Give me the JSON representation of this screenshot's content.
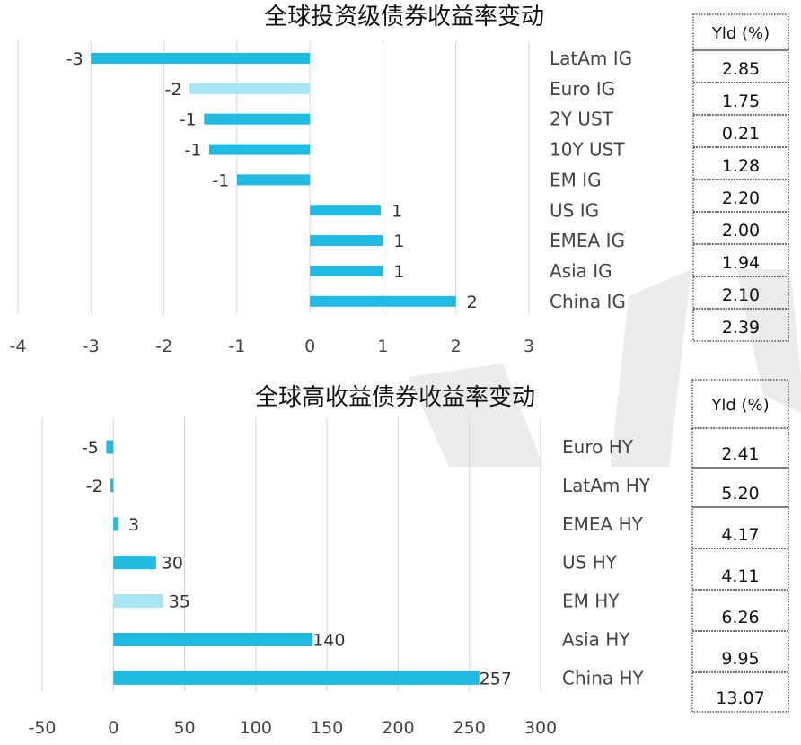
{
  "chart_data": [
    {
      "type": "bar",
      "orientation": "horizontal",
      "title": "全球投资级债券收益率变动",
      "categories": [
        "LatAm IG",
        "Euro IG",
        "2Y UST",
        "10Y UST",
        "EM IG",
        "US IG",
        "EMEA IG",
        "Asia IG",
        "China IG"
      ],
      "values": [
        -3,
        -1.65,
        -1.45,
        -1.38,
        -1,
        0.97,
        1,
        1,
        2
      ],
      "data_labels": [
        "-3",
        "-2",
        "-1",
        "-1",
        "-1",
        "1",
        "1",
        "1",
        "2"
      ],
      "highlight_index": 1,
      "x_ticks": [
        "-4",
        "-3",
        "-2",
        "-1",
        "0",
        "1",
        "2",
        "3"
      ],
      "xlim": [
        -4,
        3
      ],
      "grid": true,
      "table": {
        "header": "Yld (%)",
        "values": [
          "2.85",
          "1.75",
          "0.21",
          "1.28",
          "2.20",
          "2.00",
          "1.94",
          "2.10",
          "2.39"
        ]
      }
    },
    {
      "type": "bar",
      "orientation": "horizontal",
      "title": "全球高收益债券收益率变动",
      "categories": [
        "Euro HY",
        "LatAm HY",
        "EMEA HY",
        "US HY",
        "EM HY",
        "Asia HY",
        "China HY"
      ],
      "values": [
        -5,
        -2,
        3,
        30,
        35,
        140,
        257
      ],
      "data_labels": [
        "-5",
        "-2",
        "3",
        "30",
        "35",
        "140",
        "257"
      ],
      "highlight_index": 4,
      "x_ticks": [
        "-50",
        "0",
        "50",
        "100",
        "150",
        "200",
        "250",
        "300"
      ],
      "xlim": [
        -50,
        300
      ],
      "grid": true,
      "table": {
        "header": "Yld (%)",
        "values": [
          "2.41",
          "5.20",
          "4.17",
          "4.11",
          "6.26",
          "9.95",
          "13.07"
        ]
      }
    }
  ],
  "colors": {
    "bar": "#1fbbe2",
    "bar_highlight": "#a8e6f7",
    "grid": "#d6d6d6",
    "watermark": "#ececec"
  }
}
